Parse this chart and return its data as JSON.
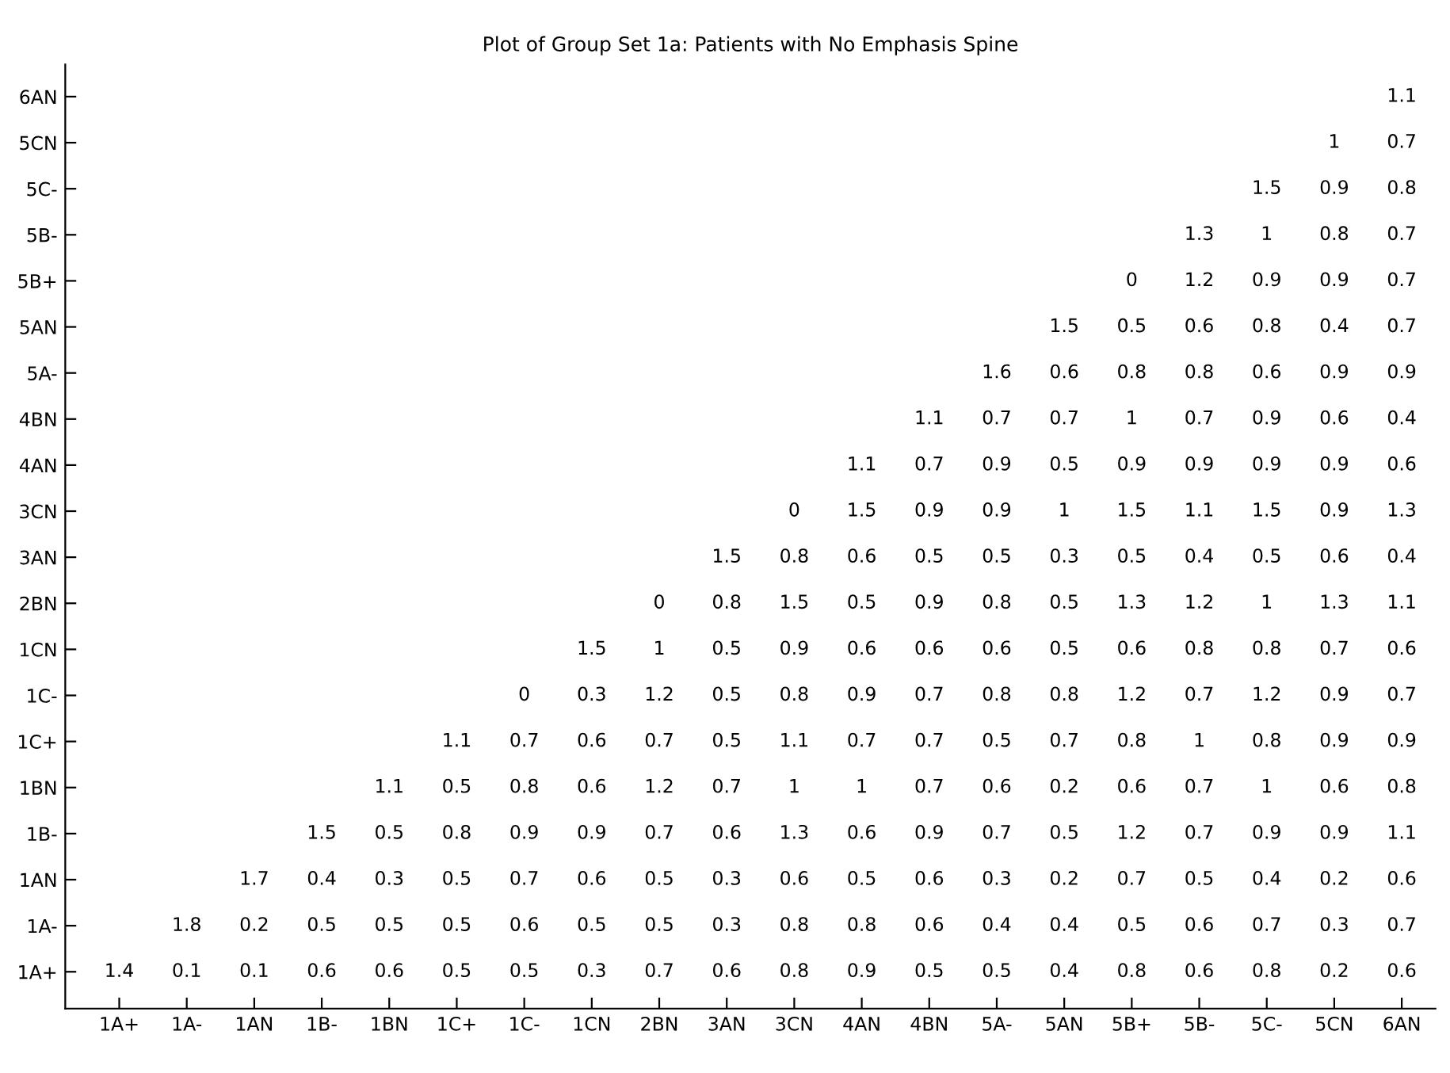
{
  "chart_data": {
    "type": "heatmap",
    "title": "Plot of Group Set 1a: Patients with No Emphasis Spine",
    "categories": [
      "1A+",
      "1A-",
      "1AN",
      "1B-",
      "1BN",
      "1C+",
      "1C-",
      "1CN",
      "2BN",
      "3AN",
      "3CN",
      "4AN",
      "4BN",
      "5A-",
      "5AN",
      "5B+",
      "5B-",
      "5C-",
      "5CN",
      "6AN"
    ],
    "y_categories": [
      "6AN",
      "5CN",
      "5C-",
      "5B-",
      "5B+",
      "5AN",
      "5A-",
      "4BN",
      "4AN",
      "3CN",
      "3AN",
      "2BN",
      "1CN",
      "1C-",
      "1C+",
      "1BN",
      "1B-",
      "1AN",
      "1A-",
      "1A+"
    ],
    "color": "#ffffff",
    "data_labels": true,
    "cells": [
      [
        null,
        null,
        null,
        null,
        null,
        null,
        null,
        null,
        null,
        null,
        null,
        null,
        null,
        null,
        null,
        null,
        null,
        null,
        null,
        1.1
      ],
      [
        null,
        null,
        null,
        null,
        null,
        null,
        null,
        null,
        null,
        null,
        null,
        null,
        null,
        null,
        null,
        null,
        null,
        null,
        1,
        0.7
      ],
      [
        null,
        null,
        null,
        null,
        null,
        null,
        null,
        null,
        null,
        null,
        null,
        null,
        null,
        null,
        null,
        null,
        null,
        1.5,
        0.9,
        0.8
      ],
      [
        null,
        null,
        null,
        null,
        null,
        null,
        null,
        null,
        null,
        null,
        null,
        null,
        null,
        null,
        null,
        null,
        1.3,
        1,
        0.8,
        0.7
      ],
      [
        null,
        null,
        null,
        null,
        null,
        null,
        null,
        null,
        null,
        null,
        null,
        null,
        null,
        null,
        null,
        0,
        1.2,
        0.9,
        0.9,
        0.7
      ],
      [
        null,
        null,
        null,
        null,
        null,
        null,
        null,
        null,
        null,
        null,
        null,
        null,
        null,
        null,
        1.5,
        0.5,
        0.6,
        0.8,
        0.4,
        0.7
      ],
      [
        null,
        null,
        null,
        null,
        null,
        null,
        null,
        null,
        null,
        null,
        null,
        null,
        null,
        1.6,
        0.6,
        0.8,
        0.8,
        0.6,
        0.9,
        0.9
      ],
      [
        null,
        null,
        null,
        null,
        null,
        null,
        null,
        null,
        null,
        null,
        null,
        null,
        1.1,
        0.7,
        0.7,
        1,
        0.7,
        0.9,
        0.6,
        0.4
      ],
      [
        null,
        null,
        null,
        null,
        null,
        null,
        null,
        null,
        null,
        null,
        null,
        1.1,
        0.7,
        0.9,
        0.5,
        0.9,
        0.9,
        0.9,
        0.9,
        0.6
      ],
      [
        null,
        null,
        null,
        null,
        null,
        null,
        null,
        null,
        null,
        null,
        0,
        1.5,
        0.9,
        0.9,
        1,
        1.5,
        1.1,
        1.5,
        0.9,
        1.3
      ],
      [
        null,
        null,
        null,
        null,
        null,
        null,
        null,
        null,
        null,
        1.5,
        0.8,
        0.6,
        0.5,
        0.5,
        0.3,
        0.5,
        0.4,
        0.5,
        0.6,
        0.4
      ],
      [
        null,
        null,
        null,
        null,
        null,
        null,
        null,
        null,
        0,
        0.8,
        1.5,
        0.5,
        0.9,
        0.8,
        0.5,
        1.3,
        1.2,
        1,
        1.3,
        1.1
      ],
      [
        null,
        null,
        null,
        null,
        null,
        null,
        null,
        1.5,
        1,
        0.5,
        0.9,
        0.6,
        0.6,
        0.6,
        0.5,
        0.6,
        0.8,
        0.8,
        0.7,
        0.6
      ],
      [
        null,
        null,
        null,
        null,
        null,
        null,
        0,
        0.3,
        1.2,
        0.5,
        0.8,
        0.9,
        0.7,
        0.8,
        0.8,
        1.2,
        0.7,
        1.2,
        0.9,
        0.7
      ],
      [
        null,
        null,
        null,
        null,
        null,
        1.1,
        0.7,
        0.6,
        0.7,
        0.5,
        1.1,
        0.7,
        0.7,
        0.5,
        0.7,
        0.8,
        1,
        0.8,
        0.9,
        0.9
      ],
      [
        null,
        null,
        null,
        null,
        1.1,
        0.5,
        0.8,
        0.6,
        1.2,
        0.7,
        1,
        1,
        0.7,
        0.6,
        0.2,
        0.6,
        0.7,
        1,
        0.6,
        0.8
      ],
      [
        null,
        null,
        null,
        1.5,
        0.5,
        0.8,
        0.9,
        0.9,
        0.7,
        0.6,
        1.3,
        0.6,
        0.9,
        0.7,
        0.5,
        1.2,
        0.7,
        0.9,
        0.9,
        1.1
      ],
      [
        null,
        null,
        1.7,
        0.4,
        0.3,
        0.5,
        0.7,
        0.6,
        0.5,
        0.3,
        0.6,
        0.5,
        0.6,
        0.3,
        0.2,
        0.7,
        0.5,
        0.4,
        0.2,
        0.6
      ],
      [
        null,
        1.8,
        0.2,
        0.5,
        0.5,
        0.5,
        0.6,
        0.5,
        0.5,
        0.3,
        0.8,
        0.8,
        0.6,
        0.4,
        0.4,
        0.5,
        0.6,
        0.7,
        0.3,
        0.7
      ],
      [
        1.4,
        0.1,
        0.1,
        0.6,
        0.6,
        0.5,
        0.5,
        0.3,
        0.7,
        0.6,
        0.8,
        0.9,
        0.5,
        0.5,
        0.4,
        0.8,
        0.6,
        0.8,
        0.2,
        0.6
      ]
    ]
  }
}
